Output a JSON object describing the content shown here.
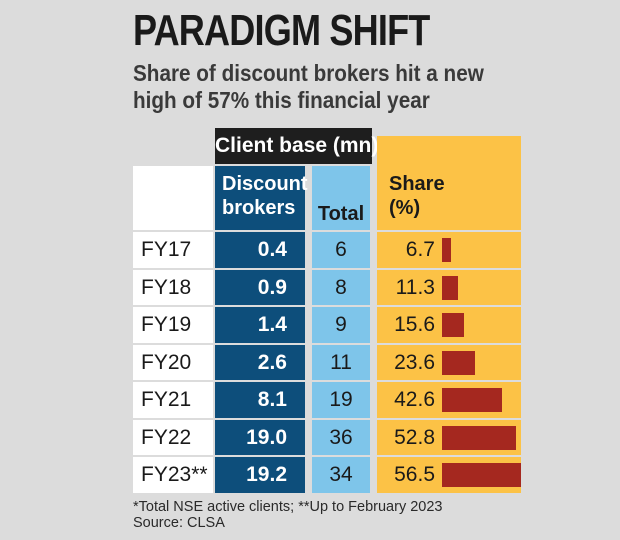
{
  "title": "PARADIGM SHIFT",
  "subtitle_lines": [
    "Share of discount brokers hit a new",
    "high of 57% this financial year"
  ],
  "colors": {
    "background": "#dcdcdc",
    "discount": "#0d4e7b",
    "total": "#7ec5ea",
    "share": "#fcc246",
    "bar": "#a5281f"
  },
  "chart_data": {
    "type": "table",
    "group_header": "Client base (mn)*",
    "columns": [
      "Discount brokers",
      "Total",
      "Share (%)"
    ],
    "column_header_lines": {
      "discount": [
        "Discount",
        "brokers"
      ],
      "total": [
        "Total"
      ],
      "share": [
        "Share",
        "(%)"
      ]
    },
    "categories": [
      "FY17",
      "FY18",
      "FY19",
      "FY20",
      "FY21",
      "FY22",
      "FY23**"
    ],
    "series": [
      {
        "name": "Discount brokers",
        "values": [
          "0.4",
          "0.9",
          "1.4",
          "2.6",
          "8.1",
          "19.0",
          "19.2"
        ]
      },
      {
        "name": "Total",
        "values": [
          6,
          8,
          9,
          11,
          19,
          36,
          34
        ]
      },
      {
        "name": "Share (%)",
        "values": [
          "6.7",
          "11.3",
          "15.6",
          "23.6",
          "42.6",
          "52.8",
          "56.5"
        ]
      }
    ],
    "bar_series": "Share (%)"
  },
  "footnotes": [
    "*Total NSE active clients; **Up to February 2023",
    "Source: CLSA"
  ]
}
